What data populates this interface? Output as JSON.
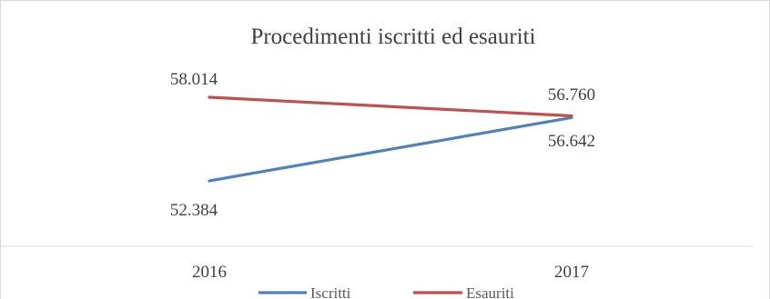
{
  "chart_data": {
    "type": "line",
    "title": "Procedimenti  iscritti ed esauriti",
    "categories": [
      "2016",
      "2017"
    ],
    "series": [
      {
        "name": "Iscritti",
        "color": "#4f81bd",
        "values": [
          52384,
          56642
        ],
        "labels": [
          "52.384",
          "56.642"
        ]
      },
      {
        "name": "Esauriti",
        "color": "#c0504d",
        "values": [
          58014,
          56760
        ],
        "labels": [
          "58.014",
          "56.760"
        ]
      }
    ],
    "xlabel": "",
    "ylabel": "",
    "grid": false,
    "legend": "bottom"
  }
}
